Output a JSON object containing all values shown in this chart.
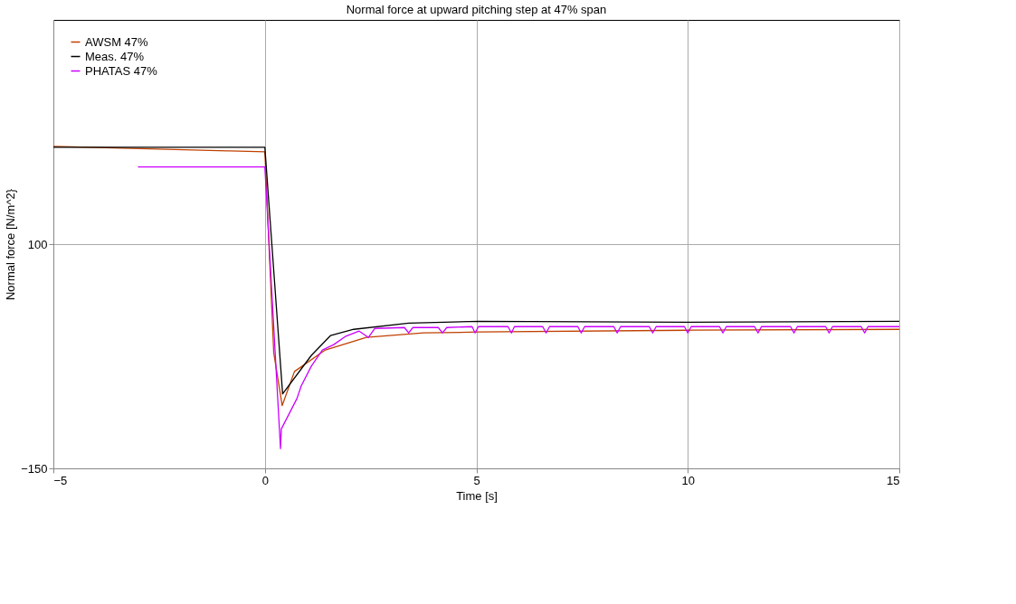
{
  "chart_data": {
    "type": "line",
    "title": "Normal force at upward pitching step at 47% span",
    "xlabel": "Time [s]",
    "ylabel": "Normal force [N/m^2}",
    "xlim": [
      -5,
      15
    ],
    "ylim": [
      -150,
      350
    ],
    "xticks": [
      -5,
      0,
      5,
      10,
      15
    ],
    "yticks": [
      -150,
      100
    ],
    "grid": true,
    "legend": "top left",
    "marker": "none",
    "line_style": "solid",
    "series": [
      {
        "name": "AWSM 47%",
        "color": "#c04000",
        "x": [
          -5,
          -0.88,
          0,
          0.21,
          0.41,
          0.7,
          1.43,
          2.4,
          3.75,
          5.06,
          10,
          15
        ],
        "values": [
          209,
          204,
          203,
          -21,
          -80,
          -42,
          -18,
          -4,
          1,
          2,
          4,
          5
        ]
      },
      {
        "name": "Meas. 47%",
        "color": "#000000",
        "x": [
          -5,
          0,
          0.42,
          1.1,
          1.55,
          2.1,
          3.4,
          5.06,
          10,
          15
        ],
        "values": [
          208,
          208,
          -67,
          -24,
          -2,
          5,
          12,
          14,
          13,
          14
        ]
      },
      {
        "name": "PHATAS 47%",
        "color": "#cc00ff",
        "x": [
          -3,
          -1.5,
          0,
          0.37,
          0.39,
          0.76,
          0.86,
          1.1,
          1.36,
          1.63,
          1.9,
          2.23,
          2.45,
          2.6,
          3.3,
          3.4,
          3.5,
          4.1,
          4.2,
          4.3,
          4.9,
          4.97,
          5.05,
          5.75,
          5.83,
          5.9,
          6.57,
          6.65,
          6.73,
          7.4,
          7.48,
          7.56,
          8.25,
          8.33,
          8.41,
          9.09,
          9.17,
          9.25,
          9.92,
          10.0,
          10.08,
          10.75,
          10.83,
          10.91,
          11.58,
          11.66,
          11.74,
          12.43,
          12.51,
          12.59,
          13.26,
          13.34,
          13.42,
          14.1,
          14.18,
          14.26,
          15
        ],
        "values": [
          186,
          186,
          186,
          -128,
          -106,
          -72,
          -58,
          -36,
          -18,
          -12,
          -3,
          3,
          -4,
          6,
          7,
          1,
          7,
          7,
          1,
          7,
          8,
          1,
          8,
          8,
          1,
          8,
          8,
          1,
          8,
          8,
          1,
          8,
          8,
          1,
          8,
          8,
          1,
          8,
          8,
          1,
          8,
          8,
          1,
          8,
          8,
          1,
          8,
          8,
          1,
          8,
          8,
          1,
          8,
          8,
          1,
          8,
          8
        ]
      }
    ]
  }
}
